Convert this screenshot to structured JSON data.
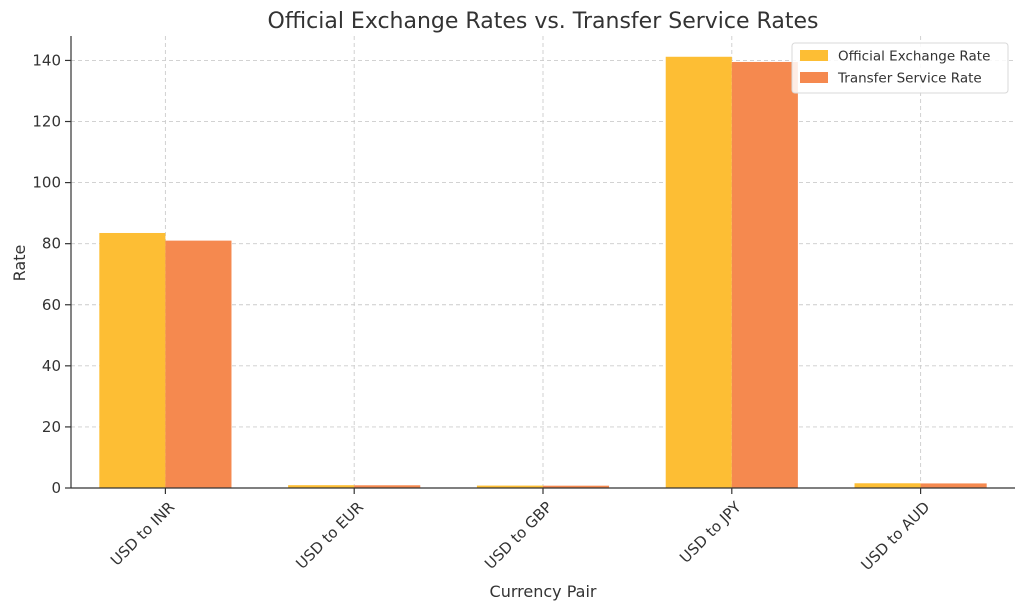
{
  "chart_data": {
    "type": "bar",
    "title": "Official Exchange Rates vs. Transfer Service Rates",
    "xlabel": "Currency Pair",
    "ylabel": "Rate",
    "categories": [
      "USD to INR",
      "USD to EUR",
      "USD to GBP",
      "USD to JPY",
      "USD to AUD"
    ],
    "series": [
      {
        "name": "Official Exchange Rate",
        "color": "#FDBE34",
        "values": [
          83.5,
          0.92,
          0.79,
          141.2,
          1.55
        ]
      },
      {
        "name": "Transfer Service Rate",
        "color": "#F5894F",
        "values": [
          81.0,
          0.89,
          0.76,
          139.5,
          1.5
        ]
      }
    ],
    "ylim": [
      0,
      148
    ],
    "yticks": [
      0,
      20,
      40,
      60,
      80,
      100,
      120,
      140
    ],
    "grid": true,
    "legend_position": "top-right"
  }
}
